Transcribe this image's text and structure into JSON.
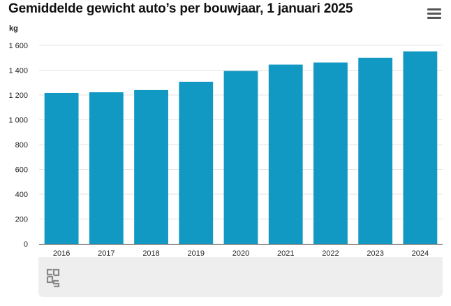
{
  "title": "Gemiddelde gewicht auto’s per bouwjaar, 1 januari 2025",
  "menu_icon": "hamburger-menu-icon",
  "logo_icon": "cbs-logo-icon",
  "colors": {
    "bar": "#1199c4",
    "grid": "#e3e3e3",
    "axis": "#333333"
  },
  "chart_data": {
    "type": "bar",
    "title": "Gemiddelde gewicht auto’s per bouwjaar, 1 januari 2025",
    "ylabel": "kg",
    "xlabel": "",
    "categories": [
      "2016",
      "2017",
      "2018",
      "2019",
      "2020",
      "2021",
      "2022",
      "2023",
      "2024"
    ],
    "values": [
      1217,
      1222,
      1240,
      1307,
      1394,
      1445,
      1462,
      1500,
      1552
    ],
    "ylim": [
      0,
      1600
    ],
    "yticks": [
      0,
      200,
      400,
      600,
      800,
      1000,
      1200,
      1400,
      1600
    ],
    "ytick_labels": [
      "0",
      "200",
      "400",
      "600",
      "800",
      "1 000",
      "1 200",
      "1 400",
      "1 600"
    ],
    "grid": true,
    "legend": "none"
  }
}
